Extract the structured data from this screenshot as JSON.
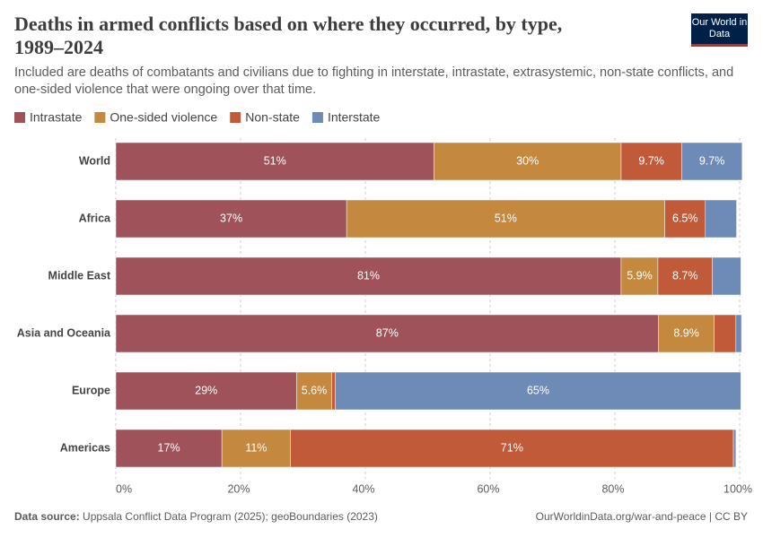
{
  "header": {
    "logo": "Our World in Data"
  },
  "chart_data": {
    "type": "stacked-bar-horizontal",
    "title": "Deaths in armed conflicts based on where they occurred, by type, 1989–2024",
    "subtitle": "Included are deaths of combatants and civilians due to fighting in interstate, intrastate, extrasystemic, non-state conflicts, and one-sided violence that were ongoing over that time.",
    "categories": [
      "World",
      "Africa",
      "Middle East",
      "Asia and Oceania",
      "Europe",
      "Americas"
    ],
    "series": [
      {
        "name": "Intrastate",
        "color": "#a0525b",
        "values": [
          51,
          37,
          81,
          87,
          29,
          17
        ],
        "value_labels": [
          "51%",
          "37%",
          "81%",
          "87%",
          "29%",
          "17%"
        ]
      },
      {
        "name": "One-sided violence",
        "color": "#c4883f",
        "values": [
          30,
          51,
          5.9,
          8.9,
          5.6,
          11
        ],
        "value_labels": [
          "30%",
          "51%",
          "5.9%",
          "8.9%",
          "5.6%",
          "11%"
        ]
      },
      {
        "name": "Non-state",
        "color": "#c05a38",
        "values": [
          9.7,
          6.5,
          8.7,
          3.5,
          0.6,
          71
        ],
        "value_labels": [
          "9.7%",
          "6.5%",
          "8.7%",
          null,
          null,
          "71%"
        ]
      },
      {
        "name": "Interstate",
        "color": "#6e8bb8",
        "values": [
          9.7,
          5,
          4.6,
          0.9,
          65,
          0.4
        ],
        "value_labels": [
          "9.7%",
          null,
          null,
          null,
          "65%",
          null
        ]
      }
    ],
    "xlim": [
      0,
      100
    ],
    "xticks": [
      {
        "value": 0,
        "label": "0%"
      },
      {
        "value": 20,
        "label": "20%"
      },
      {
        "value": 40,
        "label": "40%"
      },
      {
        "value": 60,
        "label": "60%"
      },
      {
        "value": 80,
        "label": "80%"
      },
      {
        "value": 100,
        "label": "100%"
      }
    ],
    "grid": true,
    "source_label": "Data source:",
    "source": "Uppsala Conflict Data Program (2025); geoBoundaries (2023)",
    "credit": "OurWorldinData.org/war-and-peace | CC BY"
  }
}
